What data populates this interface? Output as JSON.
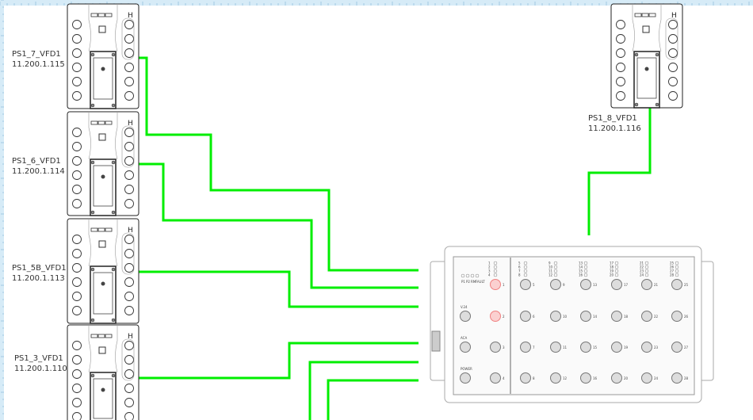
{
  "colors": {
    "wire": "#00ee00",
    "ruler": "#d6ebf7",
    "ruler_tick": "#7fb3d6",
    "device_stroke": "#333333",
    "port_fault": "#f08080"
  },
  "devices": [
    {
      "name": "PS1_7_VFD1",
      "ip": "11.200.1.115"
    },
    {
      "name": "PS1_6_VFD1",
      "ip": "11.200.1.114"
    },
    {
      "name": "PS1_5B_VFD1",
      "ip": "11.200.1.113"
    },
    {
      "name": "PS1_3_VFD1",
      "ip": "11.200.1.110"
    },
    {
      "name": "PS1_8_VFD1",
      "ip": "11.200.1.116"
    }
  ],
  "switch": {
    "status_leds": [
      "P1",
      "P2",
      "RM",
      "FAULT"
    ],
    "left_ports": [
      "V.24",
      "ACA",
      "POWER"
    ],
    "ports": [
      "1",
      "2",
      "3",
      "4",
      "5",
      "6",
      "7",
      "8",
      "9",
      "10",
      "11",
      "12",
      "13",
      "14",
      "15",
      "16",
      "17",
      "18",
      "19",
      "20",
      "21",
      "22",
      "23",
      "24",
      "25",
      "26",
      "27",
      "28"
    ],
    "fault_ports": [
      "1",
      "2"
    ]
  }
}
